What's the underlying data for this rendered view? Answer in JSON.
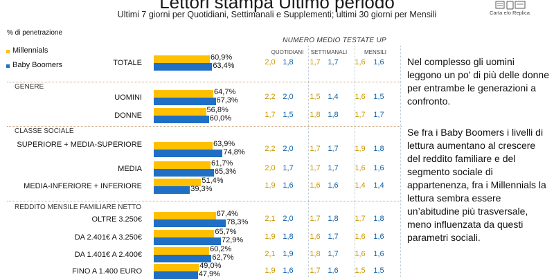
{
  "header": {
    "title": "Lettori stampa Ultimo periodo",
    "subtitle": "Ultimi 7 giorni per Quotidiani, Settimanali e Supplementi; ultimi 30 giorni per Mensili",
    "logo_label": "Carta e/o Replica",
    "pct_label": "% di penetrazione",
    "numero_medio": "NUMERO MEDIO TESTATE UP",
    "columns": [
      "QUOTIDIANI",
      "SETTIMANALI",
      "MENSILI"
    ]
  },
  "colors": {
    "millennials": "#FFC000",
    "boomers": "#1F6FC5",
    "divider": "#c9a27a"
  },
  "chart_data": {
    "type": "bar",
    "orientation": "horizontal",
    "xlim": [
      0,
      100
    ],
    "series": [
      {
        "name": "Millennials",
        "color": "#FFC000"
      },
      {
        "name": "Baby Boomers",
        "color": "#1F6FC5"
      }
    ],
    "sections": [
      "GENERE",
      "CLASSE SOCIALE",
      "REDDITO MENSILE FAMILIARE NETTO"
    ],
    "rows": [
      {
        "label": "TOTALE",
        "millennials": 60.9,
        "boomers": 63.4,
        "m_text": "60,9%",
        "b_text": "63,4%",
        "q": [
          "2,0",
          "1,8"
        ],
        "s": [
          "1,7",
          "1,7"
        ],
        "m": [
          "1,6",
          "1,6"
        ]
      },
      {
        "label": "UOMINI",
        "millennials": 64.7,
        "boomers": 67.3,
        "m_text": "64,7%",
        "b_text": "67,3%",
        "q": [
          "2,2",
          "2,0"
        ],
        "s": [
          "1,5",
          "1,4"
        ],
        "m": [
          "1,6",
          "1,5"
        ]
      },
      {
        "label": "DONNE",
        "millennials": 56.8,
        "boomers": 60.0,
        "m_text": "56,8%",
        "b_text": "60,0%",
        "q": [
          "1,7",
          "1,5"
        ],
        "s": [
          "1,8",
          "1,8"
        ],
        "m": [
          "1,7",
          "1,7"
        ]
      },
      {
        "label": "SUPERIORE + MEDIA-SUPERIORE",
        "millennials": 63.9,
        "boomers": 74.8,
        "m_text": "63,9%",
        "b_text": "74,8%",
        "q": [
          "2,2",
          "2,0"
        ],
        "s": [
          "1,7",
          "1,7"
        ],
        "m": [
          "1,9",
          "1,8"
        ]
      },
      {
        "label": "MEDIA",
        "millennials": 61.7,
        "boomers": 65.3,
        "m_text": "61,7%",
        "b_text": "65,3%",
        "q": [
          "2,0",
          "1,7"
        ],
        "s": [
          "1,7",
          "1,7"
        ],
        "m": [
          "1,6",
          "1,6"
        ]
      },
      {
        "label": "MEDIA-INFERIORE + INFERIORE",
        "millennials": 51.4,
        "boomers": 39.3,
        "m_text": "51,4%",
        "b_text": "39,3%",
        "q": [
          "1,9",
          "1,6"
        ],
        "s": [
          "1,6",
          "1,6"
        ],
        "m": [
          "1,4",
          "1,4"
        ]
      },
      {
        "label": "OLTRE 3.250€",
        "millennials": 67.4,
        "boomers": 78.3,
        "m_text": "67,4%",
        "b_text": "78,3%",
        "q": [
          "2,1",
          "2,0"
        ],
        "s": [
          "1,7",
          "1,8"
        ],
        "m": [
          "1,7",
          "1,8"
        ]
      },
      {
        "label": "DA 2.401€ A 3.250€",
        "millennials": 65.7,
        "boomers": 72.9,
        "m_text": "65,7%",
        "b_text": "72,9%",
        "q": [
          "1,9",
          "1,8"
        ],
        "s": [
          "1,6",
          "1,7"
        ],
        "m": [
          "1,6",
          "1,6"
        ]
      },
      {
        "label": "DA 1.401€ A 2.400€",
        "millennials": 60.2,
        "boomers": 62.7,
        "m_text": "60,2%",
        "b_text": "62,7%",
        "q": [
          "2,1",
          "1,9"
        ],
        "s": [
          "1,8",
          "1,7"
        ],
        "m": [
          "1,6",
          "1,6"
        ]
      },
      {
        "label": "FINO A 1.400 EURO",
        "millennials": 49.0,
        "boomers": 47.9,
        "m_text": "49,0%",
        "b_text": "47,9%",
        "q": [
          "1,9",
          "1,6"
        ],
        "s": [
          "1,7",
          "1,6"
        ],
        "m": [
          "1,5",
          "1,5"
        ]
      }
    ]
  },
  "notes": [
    "Nel complesso gli uomini leggono un po’ di più delle donne per entrambe le generazioni a confronto.",
    "Se fra i Baby Boomers i livelli di lettura aumentano al crescere del reddito familiare e del segmento sociale di appartenenza, fra i Millennials la lettura sembra essere un’abitudine più trasversale, meno influenzata da questi parametri sociali."
  ]
}
